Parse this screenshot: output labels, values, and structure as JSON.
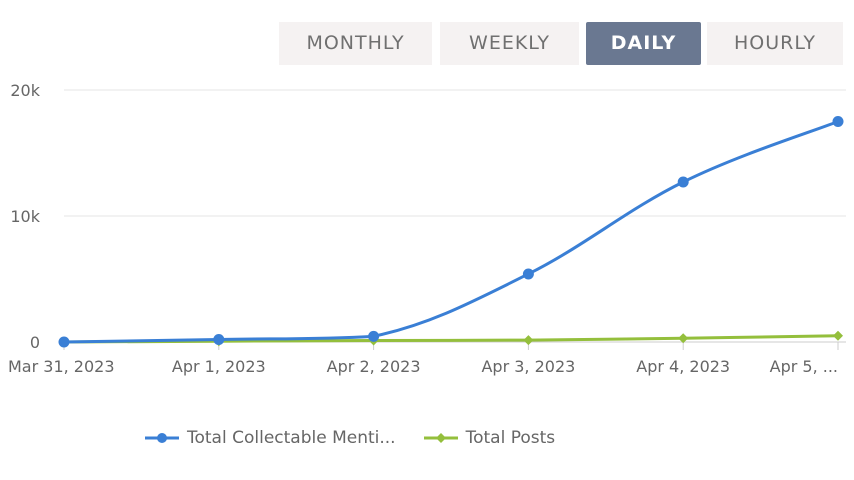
{
  "tabs": [
    {
      "label": "MONTHLY",
      "active": false
    },
    {
      "label": "WEEKLY",
      "active": false
    },
    {
      "label": "DAILY",
      "active": true
    },
    {
      "label": "HOURLY",
      "active": false
    }
  ],
  "colors": {
    "tab_active": "#6a7891",
    "tab_bg": "#f5f2f2"
  },
  "chart_data": {
    "type": "line",
    "categories": [
      "Mar 31, 2023",
      "Apr 1, 2023",
      "Apr 2, 2023",
      "Apr 3, 2023",
      "Apr 4, 2023",
      "Apr 5, ..."
    ],
    "series": [
      {
        "name": "Total Collectable Menti...",
        "color": "#3a7fd5",
        "marker": "circle",
        "values": [
          0,
          200,
          450,
          5400,
          12700,
          17500
        ]
      },
      {
        "name": "Total Posts",
        "color": "#94bf3c",
        "marker": "diamond",
        "values": [
          0,
          60,
          120,
          150,
          300,
          500
        ]
      }
    ],
    "yticks": [
      "0",
      "10k",
      "20k"
    ],
    "ylim": [
      0,
      20000
    ],
    "grid": true,
    "legend_position": "bottom"
  }
}
